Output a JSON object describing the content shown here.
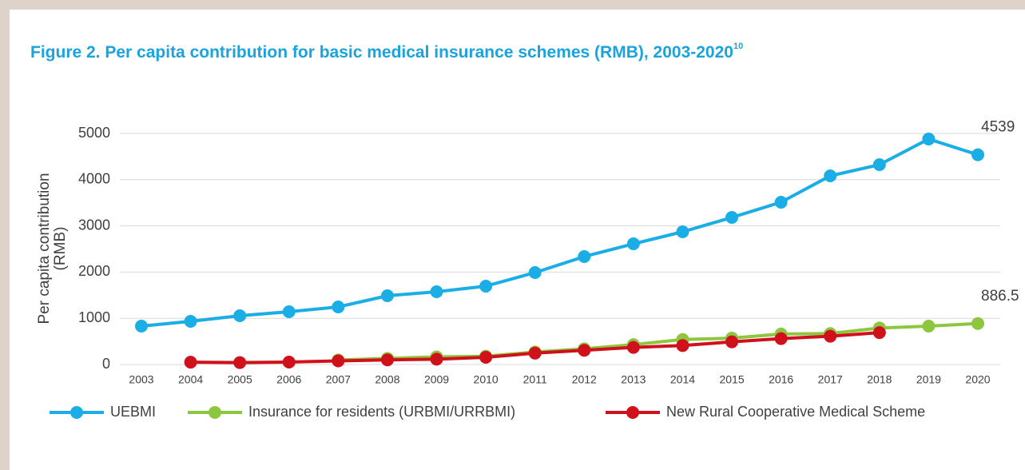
{
  "chart_data": {
    "type": "line",
    "title": "Figure 2.  Per capita contribution for basic medical insurance schemes (RMB), 2003-2020",
    "title_note": "10",
    "ylabel": [
      "Per capita contribution",
      "(RMB)"
    ],
    "categories": [
      "2003",
      "2004",
      "2005",
      "2006",
      "2007",
      "2008",
      "2009",
      "2010",
      "2011",
      "2012",
      "2013",
      "2014",
      "2015",
      "2016",
      "2017",
      "2018",
      "2019",
      "2020"
    ],
    "ylim": [
      0,
      5000
    ],
    "yticks": [
      0,
      1000,
      2000,
      3000,
      4000,
      5000
    ],
    "grid": true,
    "legend": "bottom",
    "series": [
      {
        "name": "UEBMI",
        "color": "#1bade6",
        "values": [
          830,
          934,
          1055,
          1142,
          1246,
          1488,
          1574,
          1696,
          1990,
          2336,
          2612,
          2872,
          3183,
          3512,
          4083,
          4325,
          4880,
          4539
        ],
        "value_labels": [
          null,
          null,
          null,
          null,
          null,
          null,
          null,
          null,
          null,
          null,
          null,
          null,
          null,
          null,
          null,
          null,
          null,
          "4539"
        ]
      },
      {
        "name": "Insurance for residents (URBMI/URRBMI)",
        "color": "#8dc63f",
        "values": [
          null,
          null,
          null,
          null,
          97,
          133,
          165,
          180,
          270,
          340,
          430,
          540,
          570,
          660,
          670,
          790,
          830,
          886.5
        ],
        "value_labels": [
          null,
          null,
          null,
          null,
          null,
          null,
          null,
          null,
          null,
          null,
          null,
          null,
          null,
          null,
          null,
          null,
          null,
          "886.5"
        ]
      },
      {
        "name": "New Rural Cooperative Medical Scheme",
        "color": "#d0101b",
        "values": [
          null,
          50,
          42,
          52,
          78,
          100,
          115,
          156,
          246,
          308,
          370,
          410,
          490,
          560,
          613,
          690,
          null,
          null
        ]
      }
    ]
  }
}
